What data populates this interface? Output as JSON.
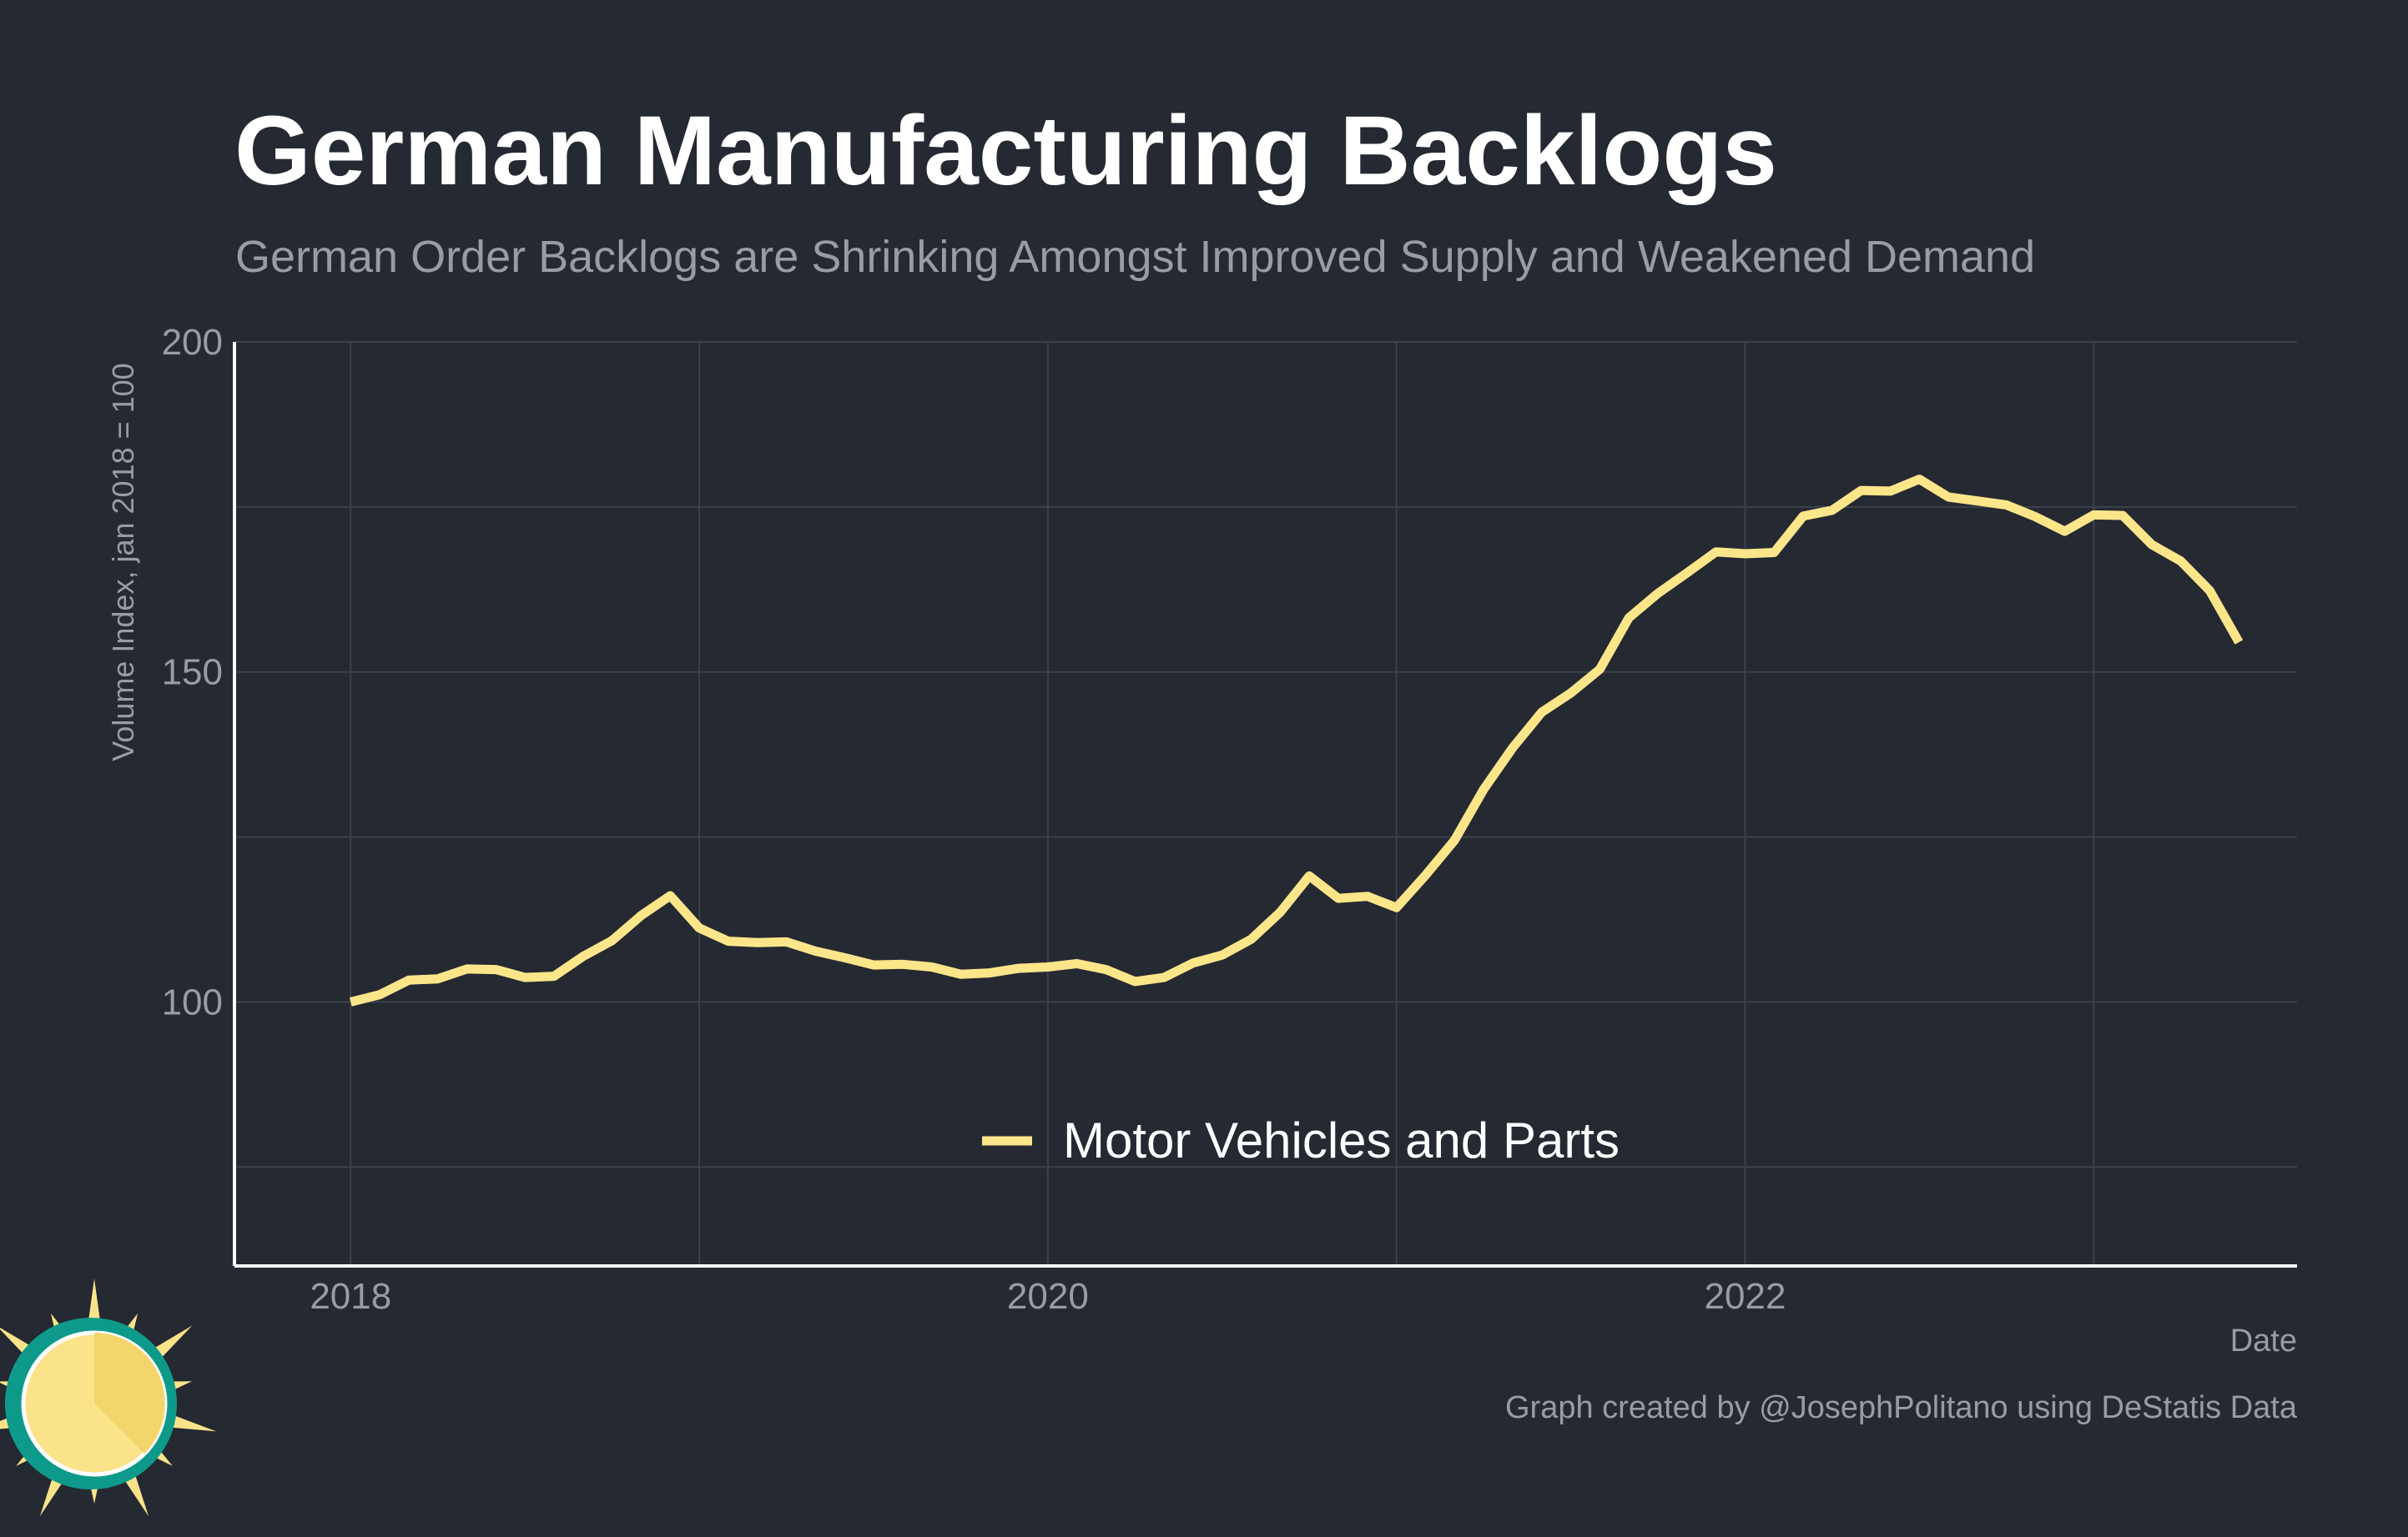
{
  "title": "German Manufacturing Backlogs",
  "subtitle": "German Order Backlogs are Shrinking Amongst Improved Supply and Weakened Demand",
  "caption": "Graph created by @JosephPolitano using DeStatis Data",
  "logo_icon": "sun-logo-icon",
  "colors": {
    "background": "#252932",
    "line": "#fde58a",
    "grid": "#3c414b",
    "axis": "#ffffff",
    "muted_text": "#9a9ca3",
    "logo_ring": "#0e9a8a",
    "logo_sun": "#fbe38a"
  },
  "chart_data": {
    "type": "line",
    "title": "German Manufacturing Backlogs",
    "xlabel": "Date",
    "ylabel": "Volume Index, jan 2018 = 100",
    "xlim": [
      "2017-09",
      "2023-08"
    ],
    "ylim": [
      60,
      200
    ],
    "yticks": [
      100,
      150,
      200
    ],
    "xticks": [
      "2018",
      "2020",
      "2022"
    ],
    "grid": true,
    "legend_position": "bottom-center",
    "series": [
      {
        "name": "Motor Vehicles and Parts",
        "color": "#fde58a",
        "x": [
          "2018-01",
          "2018-02",
          "2018-03",
          "2018-04",
          "2018-05",
          "2018-06",
          "2018-07",
          "2018-08",
          "2018-09",
          "2018-10",
          "2018-11",
          "2018-12",
          "2019-01",
          "2019-02",
          "2019-03",
          "2019-04",
          "2019-05",
          "2019-06",
          "2019-07",
          "2019-08",
          "2019-09",
          "2019-10",
          "2019-11",
          "2019-12",
          "2020-01",
          "2020-02",
          "2020-03",
          "2020-04",
          "2020-05",
          "2020-06",
          "2020-07",
          "2020-08",
          "2020-09",
          "2020-10",
          "2020-11",
          "2020-12",
          "2021-01",
          "2021-02",
          "2021-03",
          "2021-04",
          "2021-05",
          "2021-06",
          "2021-07",
          "2021-08",
          "2021-09",
          "2021-10",
          "2021-11",
          "2021-12",
          "2022-01",
          "2022-02",
          "2022-03",
          "2022-04",
          "2022-05",
          "2022-06",
          "2022-07",
          "2022-08",
          "2022-09",
          "2022-10",
          "2022-11",
          "2022-12",
          "2023-01",
          "2023-02",
          "2023-03",
          "2023-04",
          "2023-05",
          "2023-06"
        ],
        "values": [
          100.0,
          101.1,
          103.3,
          103.5,
          105.0,
          104.9,
          103.7,
          103.9,
          106.9,
          109.3,
          113.1,
          116.1,
          111.2,
          109.2,
          109.0,
          109.1,
          107.7,
          106.7,
          105.6,
          105.7,
          105.3,
          104.2,
          104.4,
          105.1,
          105.3,
          105.8,
          104.9,
          103.1,
          103.7,
          105.9,
          107.1,
          109.5,
          113.6,
          119.1,
          115.7,
          116.0,
          114.3,
          119.2,
          124.5,
          132.2,
          138.5,
          143.9,
          146.8,
          150.4,
          158.2,
          161.9,
          165.0,
          168.2,
          167.9,
          168.1,
          173.6,
          174.5,
          177.5,
          177.4,
          179.2,
          176.5,
          175.9,
          175.3,
          173.5,
          171.3,
          173.8,
          173.7,
          169.3,
          166.8,
          162.3,
          154.5
        ]
      }
    ]
  }
}
